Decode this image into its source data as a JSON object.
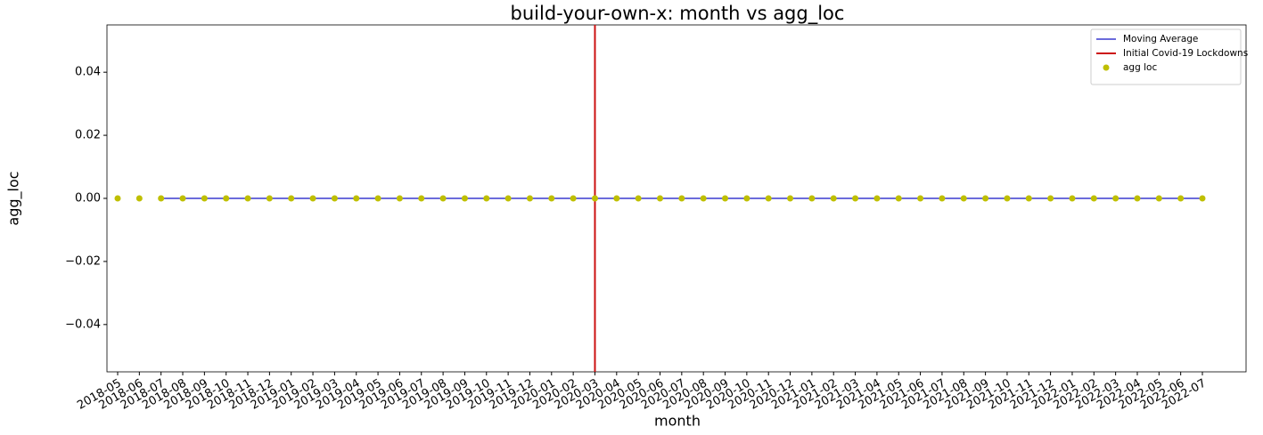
{
  "chart_data": {
    "type": "scatter",
    "title": "build-your-own-x: month vs agg_loc",
    "x_label": "month",
    "y_label": "agg_loc",
    "categories": [
      "2018-05",
      "2018-06",
      "2018-07",
      "2018-08",
      "2018-09",
      "2018-10",
      "2018-11",
      "2018-12",
      "2019-01",
      "2019-02",
      "2019-03",
      "2019-04",
      "2019-05",
      "2019-06",
      "2019-07",
      "2019-08",
      "2019-09",
      "2019-10",
      "2019-11",
      "2019-12",
      "2020-01",
      "2020-02",
      "2020-03",
      "2020-04",
      "2020-05",
      "2020-06",
      "2020-07",
      "2020-08",
      "2020-09",
      "2020-10",
      "2020-11",
      "2020-12",
      "2021-01",
      "2021-02",
      "2021-03",
      "2021-04",
      "2021-05",
      "2021-06",
      "2021-07",
      "2021-08",
      "2021-09",
      "2021-10",
      "2021-11",
      "2021-12",
      "2022-01",
      "2022-02",
      "2022-03",
      "2022-04",
      "2022-05",
      "2022-06",
      "2022-07"
    ],
    "series": [
      {
        "name": "Moving Average",
        "type": "line",
        "color": "#3a3acf",
        "values": [
          null,
          null,
          0,
          0,
          0,
          0,
          0,
          0,
          0,
          0,
          0,
          0,
          0,
          0,
          0,
          0,
          0,
          0,
          0,
          0,
          0,
          0,
          0,
          0,
          0,
          0,
          0,
          0,
          0,
          0,
          0,
          0,
          0,
          0,
          0,
          0,
          0,
          0,
          0,
          0,
          0,
          0,
          0,
          0,
          0,
          0,
          0,
          0,
          0,
          0,
          0
        ]
      },
      {
        "name": "agg loc",
        "type": "scatter",
        "color": "#bfbf00",
        "values": [
          0,
          0,
          0,
          0,
          0,
          0,
          0,
          0,
          0,
          0,
          0,
          0,
          0,
          0,
          0,
          0,
          0,
          0,
          0,
          0,
          0,
          0,
          0,
          0,
          0,
          0,
          0,
          0,
          0,
          0,
          0,
          0,
          0,
          0,
          0,
          0,
          0,
          0,
          0,
          0,
          0,
          0,
          0,
          0,
          0,
          0,
          0,
          0,
          0,
          0,
          0
        ]
      }
    ],
    "vlines": [
      {
        "name": "Initial Covid-19 Lockdowns",
        "x": "2020-03",
        "color": "#cc1111"
      }
    ],
    "ylim": [
      -0.055,
      0.055
    ],
    "yticks": [
      {
        "value": -0.04,
        "label": "−0.04"
      },
      {
        "value": -0.02,
        "label": "−0.02"
      },
      {
        "value": 0,
        "label": "0.00"
      },
      {
        "value": 0.02,
        "label": "0.02"
      },
      {
        "value": 0.04,
        "label": "0.04"
      }
    ],
    "legend": "upper right"
  }
}
